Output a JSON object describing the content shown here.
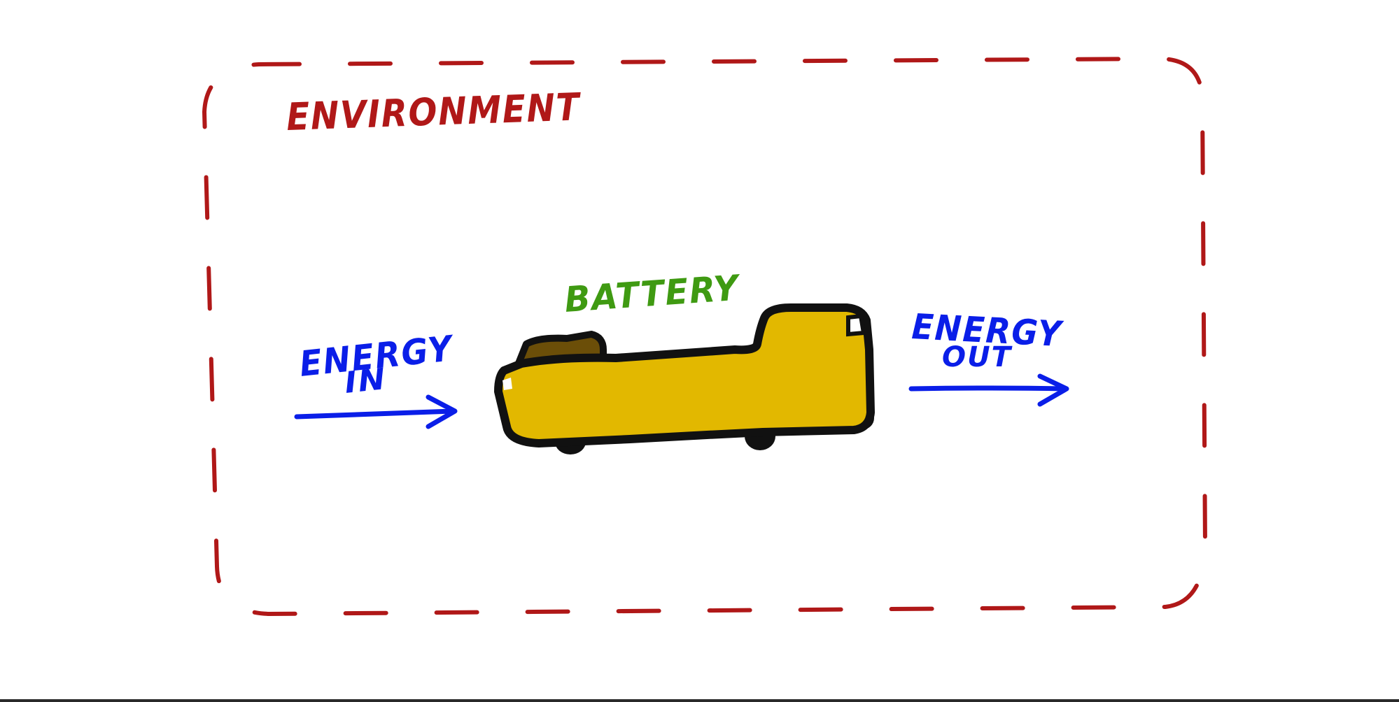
{
  "diagram": {
    "environment_label": "ENVIRONMENT",
    "battery_label": "BATTERY",
    "energy_in": {
      "line1": "ENERGY",
      "line2": "IN"
    },
    "energy_out": {
      "line1": "ENERGY",
      "line2": "OUT"
    }
  },
  "colors": {
    "environment": "#b01818",
    "battery_label": "#3f9a12",
    "energy": "#0a1ee8",
    "battery_fill": "#e2b800",
    "battery_outline": "#111111",
    "battery_shadow": "#6b4e08"
  }
}
